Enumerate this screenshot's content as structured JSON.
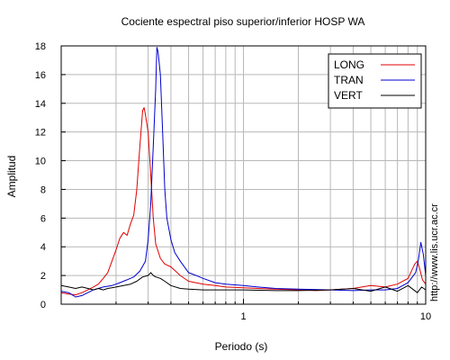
{
  "chart_data": {
    "type": "line",
    "title": "Cociente espectral piso superior/inferior  HOSP WA",
    "xlabel": "Periodo (s)",
    "ylabel": "Amplitud",
    "x_scale": "log",
    "xlim": [
      0.1,
      10
    ],
    "ylim": [
      0,
      18
    ],
    "x_tick_labels": [
      {
        "value": 1,
        "label": "1"
      },
      {
        "value": 10,
        "label": "10"
      }
    ],
    "y_tick_labels": [
      0,
      2,
      4,
      6,
      8,
      10,
      12,
      14,
      16,
      18
    ],
    "grid": true,
    "legend_position": "top-right",
    "watermark": "http://www.lis.ucr.ac.cr",
    "series": [
      {
        "name": "LONG",
        "color": "#e00000",
        "points": [
          [
            0.1,
            0.8
          ],
          [
            0.11,
            0.7
          ],
          [
            0.12,
            0.65
          ],
          [
            0.13,
            0.8
          ],
          [
            0.14,
            1.0
          ],
          [
            0.15,
            1.2
          ],
          [
            0.16,
            1.4
          ],
          [
            0.17,
            1.8
          ],
          [
            0.18,
            2.2
          ],
          [
            0.19,
            3.0
          ],
          [
            0.2,
            3.8
          ],
          [
            0.21,
            4.6
          ],
          [
            0.22,
            5.0
          ],
          [
            0.23,
            4.8
          ],
          [
            0.24,
            5.6
          ],
          [
            0.25,
            6.2
          ],
          [
            0.26,
            8.0
          ],
          [
            0.27,
            11.0
          ],
          [
            0.28,
            13.5
          ],
          [
            0.285,
            13.7
          ],
          [
            0.29,
            13.2
          ],
          [
            0.3,
            12.0
          ],
          [
            0.31,
            9.0
          ],
          [
            0.32,
            6.0
          ],
          [
            0.33,
            4.2
          ],
          [
            0.35,
            3.2
          ],
          [
            0.37,
            2.8
          ],
          [
            0.4,
            2.6
          ],
          [
            0.45,
            2.0
          ],
          [
            0.5,
            1.6
          ],
          [
            0.6,
            1.4
          ],
          [
            0.7,
            1.3
          ],
          [
            0.8,
            1.2
          ],
          [
            1.0,
            1.15
          ],
          [
            1.2,
            1.1
          ],
          [
            1.5,
            1.05
          ],
          [
            2.0,
            1.0
          ],
          [
            2.5,
            0.95
          ],
          [
            3.0,
            1.0
          ],
          [
            4.0,
            1.1
          ],
          [
            5.0,
            1.3
          ],
          [
            6.0,
            1.2
          ],
          [
            7.0,
            1.4
          ],
          [
            8.0,
            1.8
          ],
          [
            8.7,
            2.8
          ],
          [
            9.0,
            3.0
          ],
          [
            9.3,
            2.4
          ],
          [
            9.6,
            1.7
          ],
          [
            10.0,
            1.4
          ]
        ]
      },
      {
        "name": "TRAN",
        "color": "#0000d0",
        "points": [
          [
            0.1,
            0.9
          ],
          [
            0.11,
            0.8
          ],
          [
            0.12,
            0.5
          ],
          [
            0.13,
            0.6
          ],
          [
            0.14,
            0.8
          ],
          [
            0.15,
            1.0
          ],
          [
            0.17,
            1.2
          ],
          [
            0.19,
            1.3
          ],
          [
            0.21,
            1.5
          ],
          [
            0.23,
            1.7
          ],
          [
            0.25,
            1.9
          ],
          [
            0.27,
            2.3
          ],
          [
            0.29,
            3.0
          ],
          [
            0.3,
            4.5
          ],
          [
            0.31,
            7.0
          ],
          [
            0.32,
            11.0
          ],
          [
            0.33,
            15.0
          ],
          [
            0.335,
            17.9
          ],
          [
            0.34,
            17.6
          ],
          [
            0.35,
            16.0
          ],
          [
            0.36,
            12.0
          ],
          [
            0.37,
            8.0
          ],
          [
            0.38,
            6.0
          ],
          [
            0.4,
            4.5
          ],
          [
            0.42,
            3.6
          ],
          [
            0.45,
            3.0
          ],
          [
            0.5,
            2.2
          ],
          [
            0.55,
            2.0
          ],
          [
            0.6,
            1.8
          ],
          [
            0.7,
            1.5
          ],
          [
            0.8,
            1.4
          ],
          [
            1.0,
            1.3
          ],
          [
            1.2,
            1.2
          ],
          [
            1.5,
            1.1
          ],
          [
            2.0,
            1.05
          ],
          [
            3.0,
            1.0
          ],
          [
            4.0,
            0.95
          ],
          [
            5.0,
            1.0
          ],
          [
            6.0,
            1.0
          ],
          [
            7.0,
            1.1
          ],
          [
            8.0,
            1.5
          ],
          [
            8.8,
            2.2
          ],
          [
            9.1,
            3.0
          ],
          [
            9.4,
            4.3
          ],
          [
            9.7,
            3.5
          ],
          [
            10.0,
            2.0
          ]
        ]
      },
      {
        "name": "VERT",
        "color": "#000000",
        "points": [
          [
            0.1,
            1.3
          ],
          [
            0.11,
            1.2
          ],
          [
            0.12,
            1.1
          ],
          [
            0.13,
            1.2
          ],
          [
            0.14,
            1.1
          ],
          [
            0.15,
            1.0
          ],
          [
            0.16,
            1.1
          ],
          [
            0.17,
            1.0
          ],
          [
            0.18,
            1.1
          ],
          [
            0.2,
            1.2
          ],
          [
            0.22,
            1.3
          ],
          [
            0.24,
            1.4
          ],
          [
            0.26,
            1.6
          ],
          [
            0.28,
            1.9
          ],
          [
            0.3,
            2.0
          ],
          [
            0.31,
            2.2
          ],
          [
            0.32,
            2.0
          ],
          [
            0.33,
            1.9
          ],
          [
            0.35,
            1.8
          ],
          [
            0.37,
            1.6
          ],
          [
            0.4,
            1.3
          ],
          [
            0.45,
            1.1
          ],
          [
            0.5,
            1.05
          ],
          [
            0.6,
            1.0
          ],
          [
            0.8,
            1.0
          ],
          [
            1.0,
            1.0
          ],
          [
            1.5,
            0.95
          ],
          [
            2.0,
            0.95
          ],
          [
            3.0,
            1.0
          ],
          [
            4.0,
            1.1
          ],
          [
            5.0,
            0.9
          ],
          [
            6.0,
            1.2
          ],
          [
            7.0,
            0.9
          ],
          [
            8.0,
            1.3
          ],
          [
            9.0,
            0.8
          ],
          [
            9.5,
            1.2
          ],
          [
            10.0,
            1.0
          ]
        ]
      }
    ]
  }
}
